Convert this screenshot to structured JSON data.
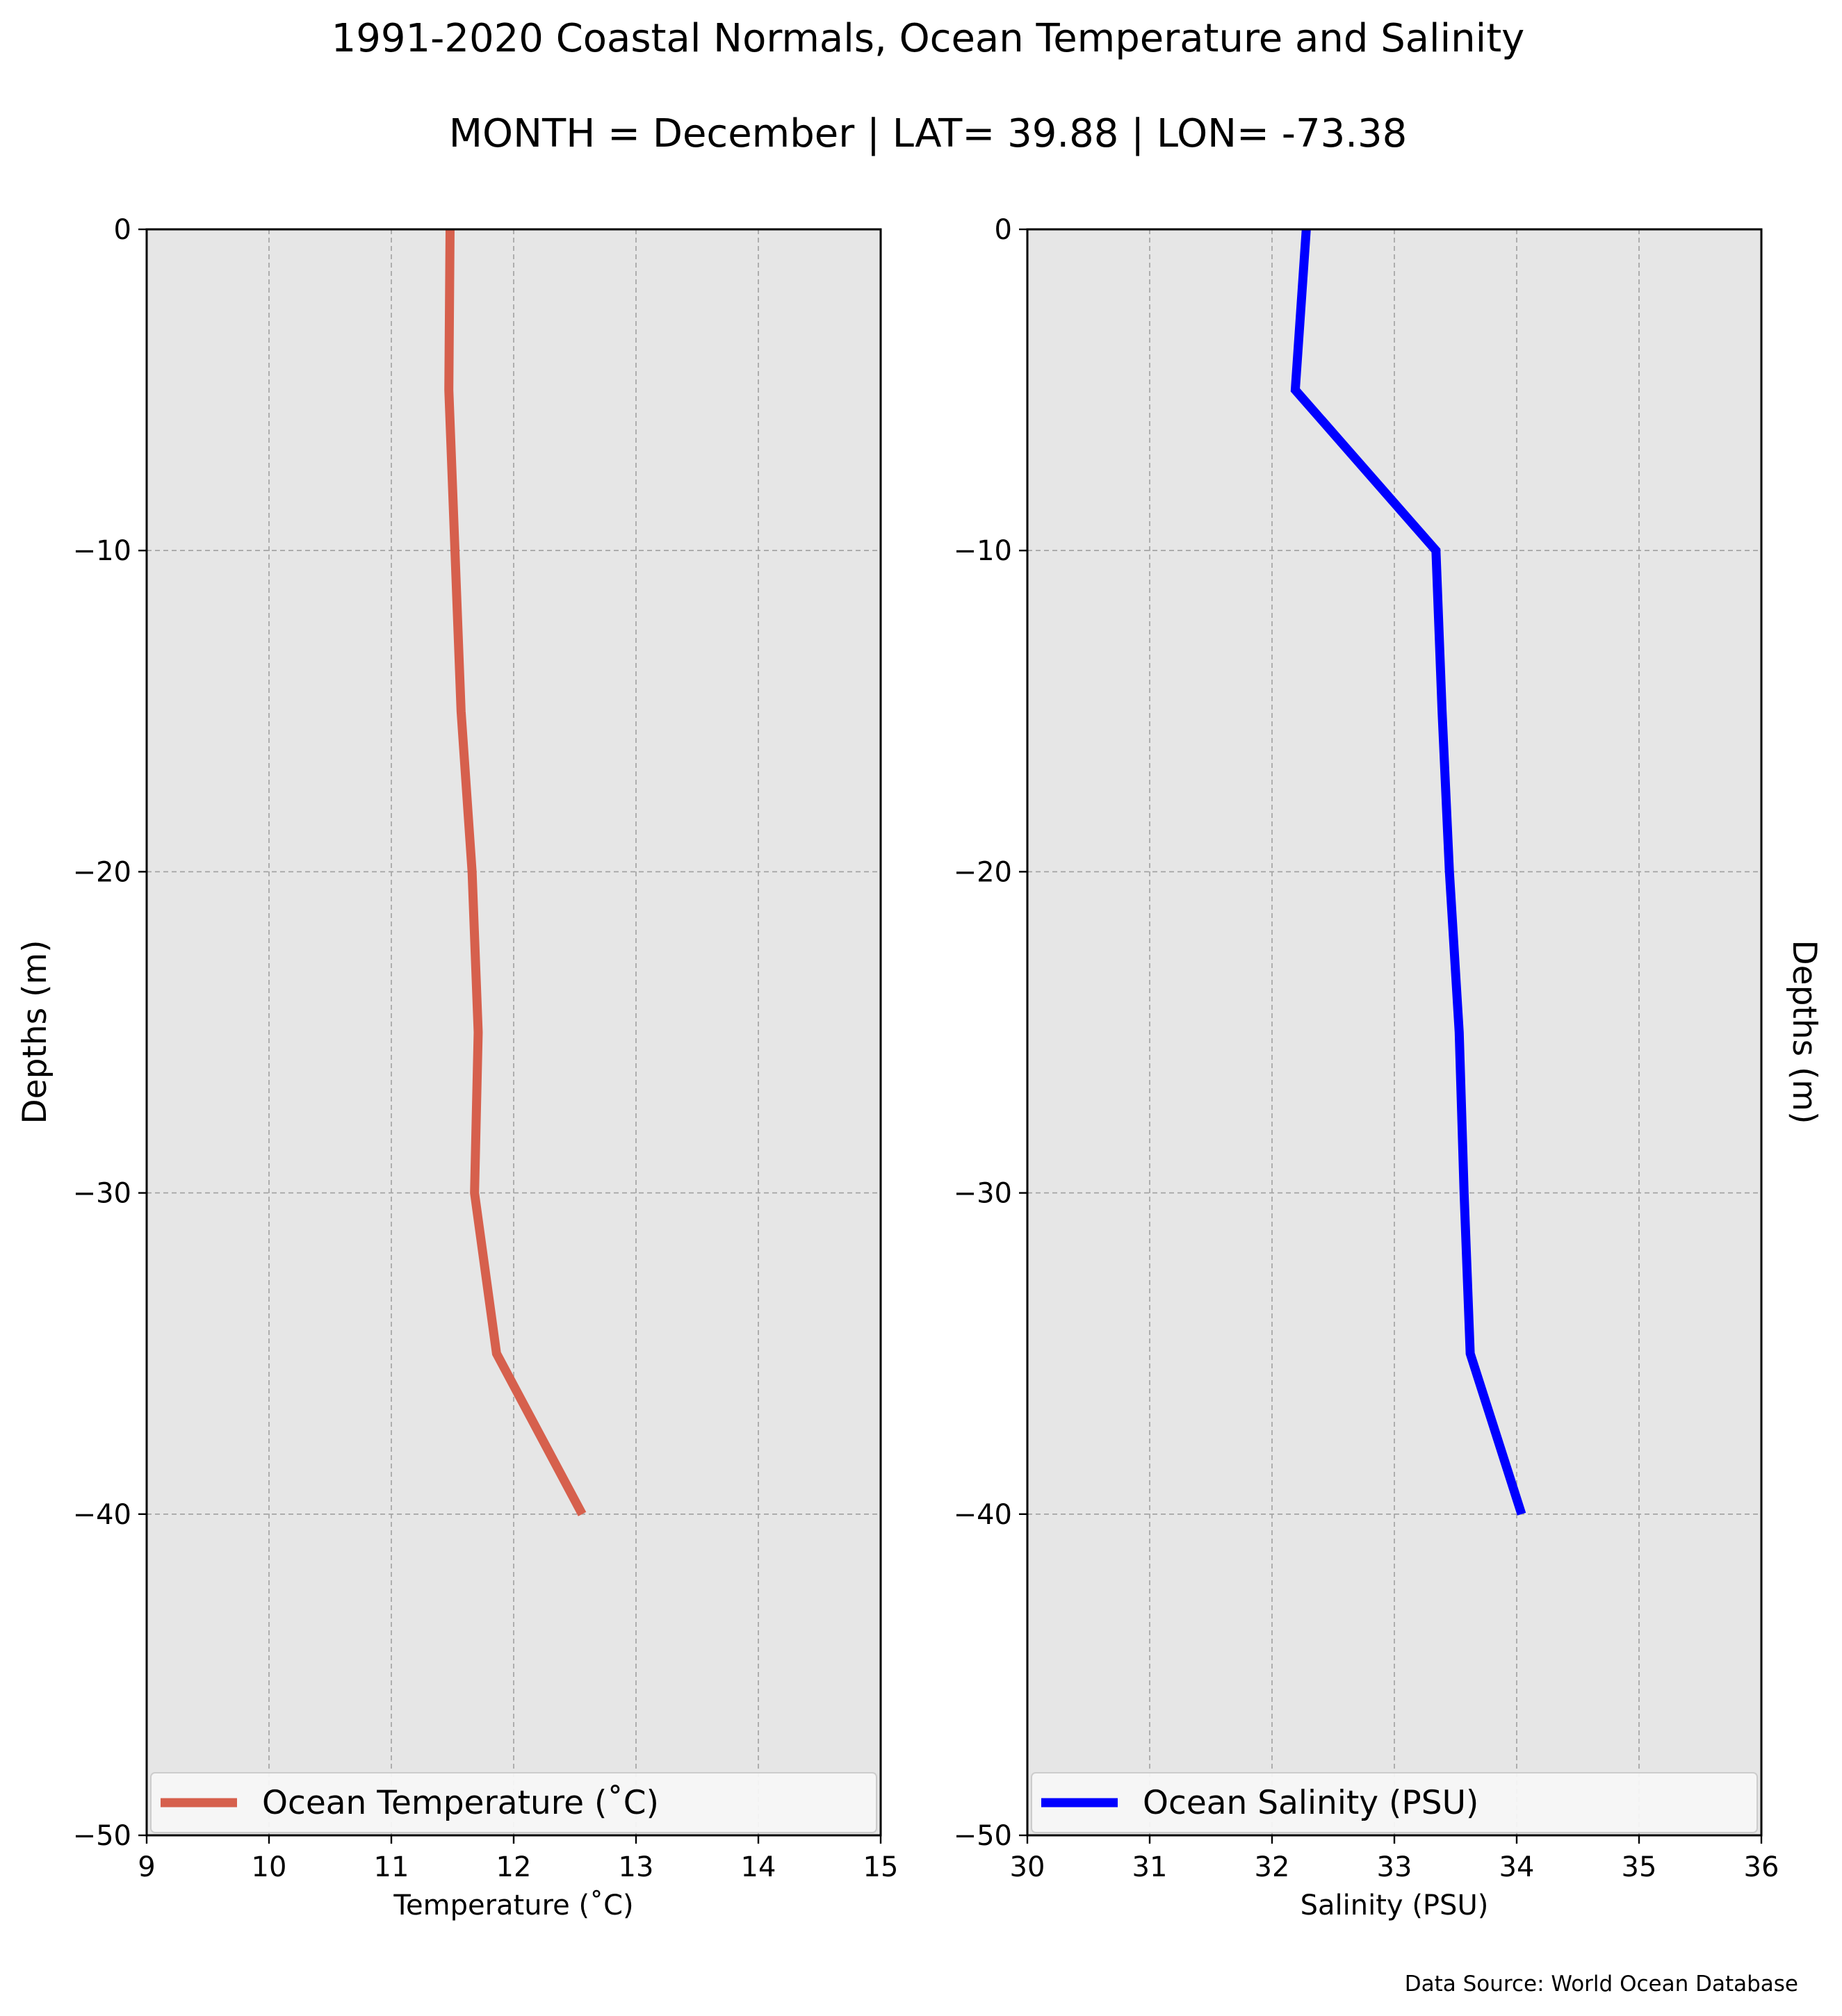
{
  "figure": {
    "title": "1991-2020 Coastal Normals, Ocean Temperature and Salinity",
    "subtitle": "MONTH = December | LAT= 39.88 | LON= -73.38",
    "source": "Data Source: World Ocean Database"
  },
  "chart_data": [
    {
      "type": "line",
      "title": "",
      "xlabel": "Temperature ($^\\circ$C)",
      "xlabel_display": "Temperature (˚C)",
      "ylabel": "Depths (m)",
      "xlim": [
        9,
        15
      ],
      "ylim": [
        -50,
        0
      ],
      "xticks": [
        9,
        10,
        11,
        12,
        13,
        14,
        15
      ],
      "yticks": [
        0,
        -10,
        -20,
        -30,
        -40,
        -50
      ],
      "ytick_labels": [
        "0",
        "−10",
        "−20",
        "−30",
        "−40",
        "−50"
      ],
      "grid": true,
      "legend_position": "lower center",
      "series": [
        {
          "name": "Ocean Temperature (˚C)",
          "color": "#d6604d",
          "points": [
            {
              "x": 11.48,
              "y": 0
            },
            {
              "x": 11.47,
              "y": -5
            },
            {
              "x": 11.52,
              "y": -10
            },
            {
              "x": 11.57,
              "y": -15
            },
            {
              "x": 11.66,
              "y": -20
            },
            {
              "x": 11.71,
              "y": -25
            },
            {
              "x": 11.68,
              "y": -30
            },
            {
              "x": 11.86,
              "y": -35
            },
            {
              "x": 12.56,
              "y": -40
            }
          ]
        }
      ]
    },
    {
      "type": "line",
      "title": "",
      "xlabel": "Salinity (PSU)",
      "xlabel_display": "Salinity (PSU)",
      "ylabel": "Depths (m)",
      "xlim": [
        30,
        36
      ],
      "ylim": [
        -50,
        0
      ],
      "xticks": [
        30,
        31,
        32,
        33,
        34,
        35,
        36
      ],
      "yticks": [
        0,
        -10,
        -20,
        -30,
        -40,
        -50
      ],
      "ytick_labels": [
        "0",
        "−10",
        "−20",
        "−30",
        "−40",
        "−50"
      ],
      "grid": true,
      "legend_position": "lower center",
      "series": [
        {
          "name": "Ocean Salinity (PSU)",
          "color": "#0000ff",
          "points": [
            {
              "x": 32.28,
              "y": 0
            },
            {
              "x": 32.19,
              "y": -5
            },
            {
              "x": 33.34,
              "y": -10
            },
            {
              "x": 33.39,
              "y": -15
            },
            {
              "x": 33.45,
              "y": -20
            },
            {
              "x": 33.53,
              "y": -25
            },
            {
              "x": 33.57,
              "y": -30
            },
            {
              "x": 33.62,
              "y": -35
            },
            {
              "x": 34.04,
              "y": -40
            }
          ]
        }
      ]
    }
  ]
}
